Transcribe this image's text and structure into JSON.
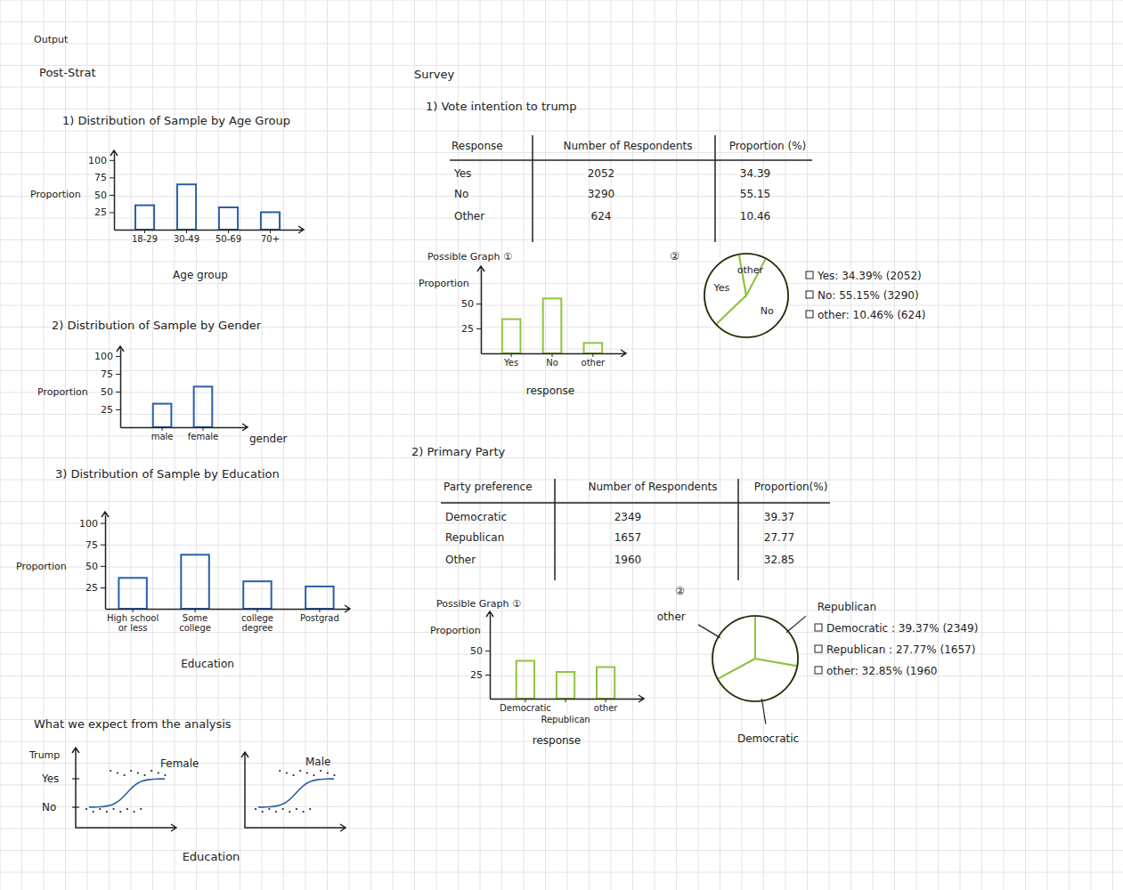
{
  "page": {
    "heading": "Output",
    "left_heading": "Post-Strat",
    "right_heading": "Survey"
  },
  "chart_data": [
    {
      "type": "bar",
      "title": "1) Distribution of Sample by Age Group",
      "x_label": "Age group",
      "y_label": "Proportion",
      "categories": [
        "18-29",
        "30-49",
        "50-69",
        "70+"
      ],
      "values": [
        35,
        65,
        32,
        25
      ],
      "color": "#2b5fa8",
      "ylim": [
        0,
        110
      ],
      "yticks": [
        25,
        50,
        75,
        100
      ]
    },
    {
      "type": "bar",
      "title": "2) Distribution of Sample by Gender",
      "x_label": "gender",
      "y_label": "Proportion",
      "categories": [
        "male",
        "female"
      ],
      "values": [
        33,
        57
      ],
      "color": "#2b5fa8",
      "ylim": [
        0,
        110
      ],
      "yticks": [
        25,
        50,
        75,
        100
      ]
    },
    {
      "type": "bar",
      "title": "3) Distribution of Sample by Education",
      "x_label": "Education",
      "y_label": "Proportion",
      "categories": [
        "High school or less",
        "Some college",
        "college degree",
        "Postgrad"
      ],
      "values": [
        36,
        63,
        32,
        26
      ],
      "color": "#2b5fa8",
      "ylim": [
        0,
        110
      ],
      "yticks": [
        25,
        50,
        75,
        100
      ]
    },
    {
      "type": "bar",
      "title": "Possible Graph ①",
      "x_label": "response",
      "y_label": "Proportion",
      "categories": [
        "Yes",
        "No",
        "other"
      ],
      "values": [
        34.39,
        55.15,
        10.46
      ],
      "color": "#8dc63f",
      "ylim": [
        0,
        85
      ],
      "yticks": [
        25,
        50
      ]
    },
    {
      "type": "pie",
      "title": "②",
      "categories": [
        "Yes",
        "No",
        "other"
      ],
      "values": [
        34.39,
        55.15,
        10.46
      ],
      "value_labels": [
        "Yes: 34.39% (2052)",
        "No: 55.15% (3290)",
        "other: 10.46% (624)"
      ],
      "color": "#8dc63f"
    },
    {
      "type": "bar",
      "title": "Possible Graph ①",
      "x_label": "response",
      "y_label": "Proportion",
      "categories": [
        "Democratic",
        "Republican",
        "other"
      ],
      "values": [
        39.37,
        27.77,
        32.85
      ],
      "color": "#8dc63f",
      "ylim": [
        0,
        88
      ],
      "yticks": [
        25,
        50
      ]
    },
    {
      "type": "pie",
      "title": "②",
      "categories": [
        "Democratic",
        "Republican",
        "other"
      ],
      "values": [
        39.37,
        27.77,
        32.85
      ],
      "value_labels": [
        "Democratic : 39.37% (2349)",
        "Republican : 27.77% (1657)",
        "other: 32.85% (1960"
      ],
      "color": "#8dc63f"
    }
  ],
  "tables": [
    {
      "title": "1) Vote intention to trump",
      "columns": [
        "Response",
        "Number of Respondents",
        "Proportion (%)"
      ],
      "rows": [
        [
          "Yes",
          2052,
          34.39
        ],
        [
          "No",
          3290,
          55.15
        ],
        [
          "Other",
          624,
          10.46
        ]
      ]
    },
    {
      "title": "2) Primary Party",
      "columns": [
        "Party preference",
        "Number of Respondents",
        "Proportion(%)"
      ],
      "rows": [
        [
          "Democratic",
          2349,
          39.37
        ],
        [
          "Republican",
          1657,
          27.77
        ],
        [
          "Other",
          1960,
          32.85
        ]
      ]
    }
  ],
  "expectation": {
    "title": "What we expect from the analysis",
    "y_label": "Trump",
    "y_levels": [
      "Yes",
      "No"
    ],
    "panels": [
      "Female",
      "Male"
    ],
    "x_label": "Education"
  }
}
